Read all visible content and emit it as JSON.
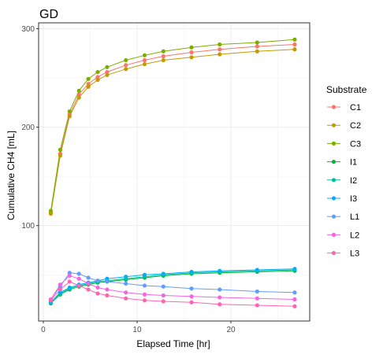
{
  "chart_data": {
    "type": "line",
    "title": "GD",
    "xlabel": "Elapsed Time [hr]",
    "ylabel": "Cumulative CH4 [mL]",
    "xlim": [
      -0.5,
      28.4
    ],
    "ylim": [
      3,
      306
    ],
    "xticks": [
      0,
      10,
      20
    ],
    "yticks": [
      100,
      200,
      300
    ],
    "grid": true,
    "legend_title": "Substrate",
    "legend_position": "right",
    "x": [
      0.8,
      1.8,
      2.8,
      3.8,
      4.8,
      5.8,
      6.8,
      8.8,
      10.8,
      12.8,
      15.8,
      18.8,
      22.8,
      26.8
    ],
    "series": [
      {
        "name": "C1",
        "color": "#F8766D",
        "values": [
          113,
          173,
          213,
          233,
          244,
          251,
          256,
          263,
          268,
          272,
          276,
          279,
          282,
          284
        ]
      },
      {
        "name": "C2",
        "color": "#C49A00",
        "values": [
          112,
          171,
          211,
          230,
          241,
          248,
          253,
          259,
          264,
          268,
          271,
          274,
          277,
          279
        ]
      },
      {
        "name": "C3",
        "color": "#7CAE00",
        "values": [
          115,
          177,
          216,
          237,
          249,
          256,
          261,
          268,
          273,
          277,
          281,
          284,
          286,
          289
        ]
      },
      {
        "name": "I1",
        "color": "#00BA38",
        "values": [
          21,
          30,
          35,
          38,
          40,
          42,
          43,
          45,
          47,
          49,
          51,
          52,
          53,
          54
        ]
      },
      {
        "name": "I2",
        "color": "#00BFA0",
        "values": [
          22,
          31,
          36,
          39,
          41,
          43,
          44,
          46,
          48,
          50,
          52,
          53,
          54,
          55
        ]
      },
      {
        "name": "I3",
        "color": "#00B0F6",
        "values": [
          22,
          32,
          37,
          40,
          42,
          44,
          46,
          48,
          50,
          51,
          53,
          54,
          55,
          56
        ]
      },
      {
        "name": "L1",
        "color": "#619CFF",
        "values": [
          25,
          38,
          52,
          51,
          47,
          44,
          43,
          41,
          39,
          38,
          36,
          35,
          33,
          32
        ]
      },
      {
        "name": "L2",
        "color": "#F564E3",
        "values": [
          25,
          40,
          49,
          46,
          41,
          37,
          35,
          32,
          30,
          29,
          28,
          27,
          26,
          25
        ]
      },
      {
        "name": "L3",
        "color": "#FF64B0",
        "values": [
          24,
          35,
          43,
          39,
          35,
          31,
          29,
          26,
          24,
          23,
          22,
          20,
          19,
          18
        ]
      }
    ]
  }
}
